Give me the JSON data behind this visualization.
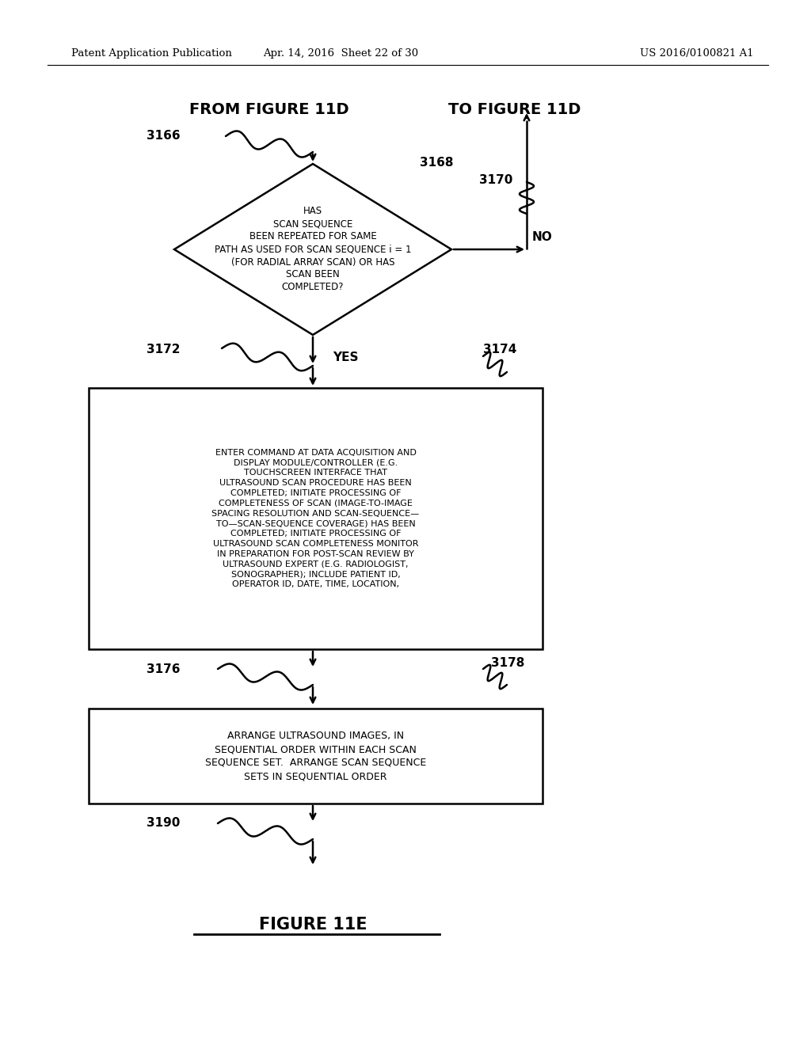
{
  "bg_color": "#ffffff",
  "header_left": "Patent Application Publication",
  "header_mid": "Apr. 14, 2016  Sheet 22 of 30",
  "header_right": "US 2016/0100821 A1",
  "header_fontsize": 10,
  "from_label": "FROM FIGURE 11D",
  "to_label": "TO FIGURE 11D",
  "figure_label": "FIGURE 11E",
  "diamond_text": "HAS\nSCAN SEQUENCE\nBEEN REPEATED FOR SAME\nPATH AS USED FOR SCAN SEQUENCE i = 1\n(FOR RADIAL ARRAY SCAN) OR HAS\nSCAN BEEN\nCOMPLETED?",
  "box1_text": "ENTER COMMAND AT DATA ACQUISITION AND\nDISPLAY MODULE/CONTROLLER (E.G.\nTOUCHSCREEN INTERFACE THAT\nULTRASOUND SCAN PROCEDURE HAS BEEN\nCOMPLETED; INITIATE PROCESSING OF\nCOMPLETENESS OF SCAN (IMAGE-TO-IMAGE\nSPACING RESOLUTION AND SCAN-SEQUENCE—\nTO—SCAN-SEQUENCE COVERAGE) HAS BEEN\nCOMPLETED; INITIATE PROCESSING OF\nULTRASOUND SCAN COMPLETENESS MONITOR\nIN PREPARATION FOR POST-SCAN REVIEW BY\nULTRASOUND EXPERT (E.G. RADIOLOGIST,\nSONOGRAPHER); INCLUDE PATIENT ID,\nOPERATOR ID, DATE, TIME, LOCATION,",
  "box2_text": "ARRANGE ULTRASOUND IMAGES, IN\nSEQUENTIAL ORDER WITHIN EACH SCAN\nSEQUENCE SET.  ARRANGE SCAN SEQUENCE\nSETS IN SEQUENTIAL ORDER",
  "no_label": "NO",
  "yes_label": "YES"
}
